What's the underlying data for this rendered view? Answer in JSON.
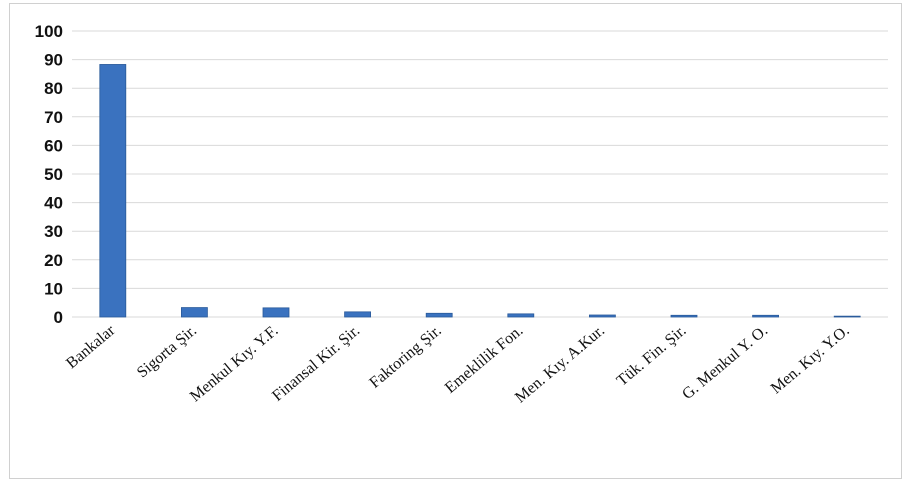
{
  "chart_data": {
    "type": "bar",
    "title": "",
    "xlabel": "",
    "ylabel": "",
    "ylim": [
      0,
      100
    ],
    "yticks": [
      0,
      10,
      20,
      30,
      40,
      50,
      60,
      70,
      80,
      90,
      100
    ],
    "grid": true,
    "legend": "none",
    "bar_color": "#3a72bf",
    "categories": [
      "Bankalar",
      "Sigorta Şir.",
      "Menkul Kıy. Y.F.",
      "Finansal Kir. Şir.",
      "Faktoring Şir.",
      "Emeklilik Fon.",
      "Men. Kıy. A.Kur.",
      "Tük. Fin. Şir.",
      "G. Menkul Y. O.",
      "Men. Kıy. Y.O."
    ],
    "values": [
      88.3,
      3.3,
      3.2,
      1.8,
      1.3,
      1.1,
      0.7,
      0.6,
      0.6,
      0.3
    ]
  }
}
